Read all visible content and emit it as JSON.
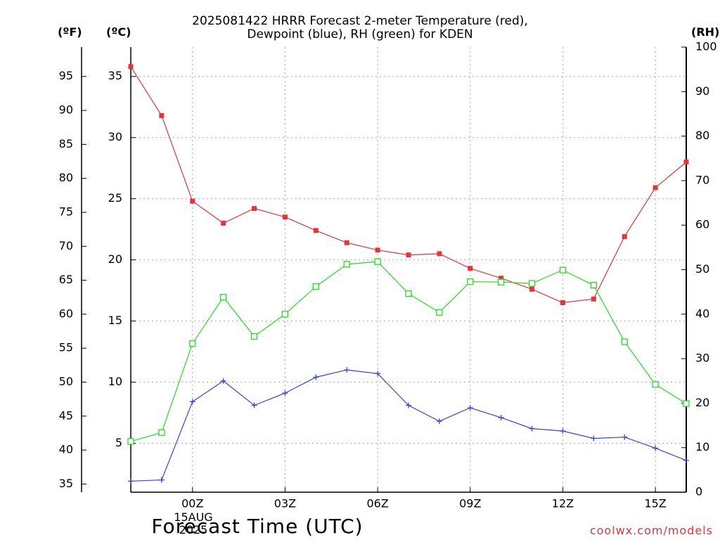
{
  "chart_data": {
    "type": "line",
    "title_lines": [
      "2025081422 HRRR Forecast 2-meter Temperature (red),",
      "Dewpoint (blue), RH (green) for KDEN"
    ],
    "xlabel": "Forecast Time (UTC)",
    "date_label": {
      "day": "15AUG",
      "year": "2025"
    },
    "credit": "coolwx.com/models",
    "unit_labels": {
      "fahrenheit": "(ºF)",
      "celsius": "(ºC)",
      "rh": "(RH)"
    },
    "x_hours": [
      -2,
      -1,
      0,
      1,
      2,
      3,
      4,
      5,
      6,
      7,
      8,
      9,
      10,
      11,
      12,
      13,
      14,
      15,
      16
    ],
    "x_range_hours": [
      -2,
      16
    ],
    "x_ticks": [
      {
        "hour": 0,
        "label": "00Z"
      },
      {
        "hour": 3,
        "label": "03Z"
      },
      {
        "hour": 6,
        "label": "06Z"
      },
      {
        "hour": 9,
        "label": "09Z"
      },
      {
        "hour": 12,
        "label": "12Z"
      },
      {
        "hour": 15,
        "label": "15Z"
      }
    ],
    "celsius_ticks": [
      5,
      10,
      15,
      20,
      25,
      30,
      35
    ],
    "fahrenheit_ticks": [
      35,
      40,
      45,
      50,
      55,
      60,
      65,
      70,
      75,
      80,
      85,
      90,
      95
    ],
    "rh_ticks": [
      0,
      10,
      20,
      30,
      40,
      50,
      60,
      70,
      80,
      90,
      100
    ],
    "temp_c_range": [
      1.0,
      37.4
    ],
    "rh_range": [
      0,
      100
    ],
    "grid": true,
    "series": [
      {
        "name": "2-meter Temperature",
        "axis": "celsius",
        "color": "#e8333a",
        "marker": "filled-square",
        "values": [
          35.8,
          31.8,
          24.8,
          23.0,
          24.2,
          23.5,
          22.4,
          21.4,
          20.8,
          20.4,
          20.5,
          19.3,
          18.5,
          17.6,
          16.5,
          16.8,
          21.9,
          25.9,
          28.0
        ]
      },
      {
        "name": "Dewpoint",
        "axis": "celsius",
        "color": "#3344e8",
        "marker": "plus",
        "values": [
          1.9,
          2.0,
          8.4,
          10.1,
          8.1,
          9.1,
          10.4,
          11.0,
          10.7,
          8.1,
          6.8,
          7.9,
          7.1,
          6.2,
          6.0,
          5.4,
          5.5,
          4.6,
          3.6
        ]
      },
      {
        "name": "RH",
        "axis": "rh",
        "color": "#22dd22",
        "marker": "open-square",
        "values": [
          11.4,
          13.4,
          33.4,
          43.8,
          35.0,
          40.0,
          46.2,
          51.2,
          51.8,
          44.6,
          40.4,
          47.3,
          47.2,
          46.9,
          49.9,
          46.5,
          33.8,
          24.2,
          19.9
        ]
      }
    ]
  }
}
